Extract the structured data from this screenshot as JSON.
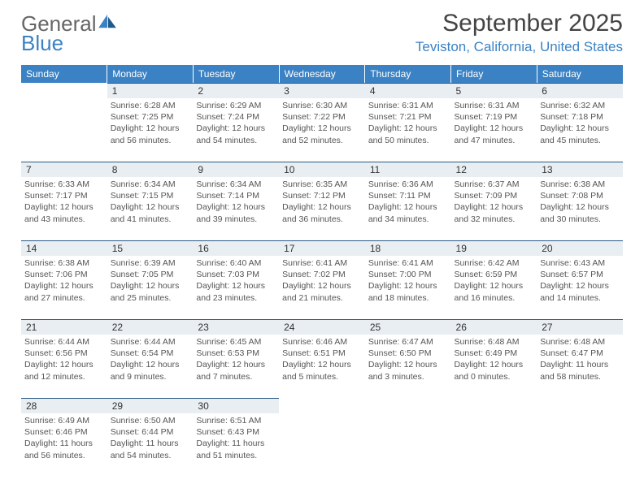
{
  "logo": {
    "general": "General",
    "blue": "Blue"
  },
  "title": "September 2025",
  "location": "Teviston, California, United States",
  "colors": {
    "brand": "#3b82c4",
    "text": "#444444",
    "daybg": "#e9eef2",
    "dayborder": "#2a5a85"
  },
  "weekdays": [
    "Sunday",
    "Monday",
    "Tuesday",
    "Wednesday",
    "Thursday",
    "Friday",
    "Saturday"
  ],
  "weeks": [
    [
      {
        "day": "",
        "lines": []
      },
      {
        "day": "1",
        "lines": [
          "Sunrise: 6:28 AM",
          "Sunset: 7:25 PM",
          "Daylight: 12 hours and 56 minutes."
        ]
      },
      {
        "day": "2",
        "lines": [
          "Sunrise: 6:29 AM",
          "Sunset: 7:24 PM",
          "Daylight: 12 hours and 54 minutes."
        ]
      },
      {
        "day": "3",
        "lines": [
          "Sunrise: 6:30 AM",
          "Sunset: 7:22 PM",
          "Daylight: 12 hours and 52 minutes."
        ]
      },
      {
        "day": "4",
        "lines": [
          "Sunrise: 6:31 AM",
          "Sunset: 7:21 PM",
          "Daylight: 12 hours and 50 minutes."
        ]
      },
      {
        "day": "5",
        "lines": [
          "Sunrise: 6:31 AM",
          "Sunset: 7:19 PM",
          "Daylight: 12 hours and 47 minutes."
        ]
      },
      {
        "day": "6",
        "lines": [
          "Sunrise: 6:32 AM",
          "Sunset: 7:18 PM",
          "Daylight: 12 hours and 45 minutes."
        ]
      }
    ],
    [
      {
        "day": "7",
        "lines": [
          "Sunrise: 6:33 AM",
          "Sunset: 7:17 PM",
          "Daylight: 12 hours and 43 minutes."
        ]
      },
      {
        "day": "8",
        "lines": [
          "Sunrise: 6:34 AM",
          "Sunset: 7:15 PM",
          "Daylight: 12 hours and 41 minutes."
        ]
      },
      {
        "day": "9",
        "lines": [
          "Sunrise: 6:34 AM",
          "Sunset: 7:14 PM",
          "Daylight: 12 hours and 39 minutes."
        ]
      },
      {
        "day": "10",
        "lines": [
          "Sunrise: 6:35 AM",
          "Sunset: 7:12 PM",
          "Daylight: 12 hours and 36 minutes."
        ]
      },
      {
        "day": "11",
        "lines": [
          "Sunrise: 6:36 AM",
          "Sunset: 7:11 PM",
          "Daylight: 12 hours and 34 minutes."
        ]
      },
      {
        "day": "12",
        "lines": [
          "Sunrise: 6:37 AM",
          "Sunset: 7:09 PM",
          "Daylight: 12 hours and 32 minutes."
        ]
      },
      {
        "day": "13",
        "lines": [
          "Sunrise: 6:38 AM",
          "Sunset: 7:08 PM",
          "Daylight: 12 hours and 30 minutes."
        ]
      }
    ],
    [
      {
        "day": "14",
        "lines": [
          "Sunrise: 6:38 AM",
          "Sunset: 7:06 PM",
          "Daylight: 12 hours and 27 minutes."
        ]
      },
      {
        "day": "15",
        "lines": [
          "Sunrise: 6:39 AM",
          "Sunset: 7:05 PM",
          "Daylight: 12 hours and 25 minutes."
        ]
      },
      {
        "day": "16",
        "lines": [
          "Sunrise: 6:40 AM",
          "Sunset: 7:03 PM",
          "Daylight: 12 hours and 23 minutes."
        ]
      },
      {
        "day": "17",
        "lines": [
          "Sunrise: 6:41 AM",
          "Sunset: 7:02 PM",
          "Daylight: 12 hours and 21 minutes."
        ]
      },
      {
        "day": "18",
        "lines": [
          "Sunrise: 6:41 AM",
          "Sunset: 7:00 PM",
          "Daylight: 12 hours and 18 minutes."
        ]
      },
      {
        "day": "19",
        "lines": [
          "Sunrise: 6:42 AM",
          "Sunset: 6:59 PM",
          "Daylight: 12 hours and 16 minutes."
        ]
      },
      {
        "day": "20",
        "lines": [
          "Sunrise: 6:43 AM",
          "Sunset: 6:57 PM",
          "Daylight: 12 hours and 14 minutes."
        ]
      }
    ],
    [
      {
        "day": "21",
        "lines": [
          "Sunrise: 6:44 AM",
          "Sunset: 6:56 PM",
          "Daylight: 12 hours and 12 minutes."
        ]
      },
      {
        "day": "22",
        "lines": [
          "Sunrise: 6:44 AM",
          "Sunset: 6:54 PM",
          "Daylight: 12 hours and 9 minutes."
        ]
      },
      {
        "day": "23",
        "lines": [
          "Sunrise: 6:45 AM",
          "Sunset: 6:53 PM",
          "Daylight: 12 hours and 7 minutes."
        ]
      },
      {
        "day": "24",
        "lines": [
          "Sunrise: 6:46 AM",
          "Sunset: 6:51 PM",
          "Daylight: 12 hours and 5 minutes."
        ]
      },
      {
        "day": "25",
        "lines": [
          "Sunrise: 6:47 AM",
          "Sunset: 6:50 PM",
          "Daylight: 12 hours and 3 minutes."
        ]
      },
      {
        "day": "26",
        "lines": [
          "Sunrise: 6:48 AM",
          "Sunset: 6:49 PM",
          "Daylight: 12 hours and 0 minutes."
        ]
      },
      {
        "day": "27",
        "lines": [
          "Sunrise: 6:48 AM",
          "Sunset: 6:47 PM",
          "Daylight: 11 hours and 58 minutes."
        ]
      }
    ],
    [
      {
        "day": "28",
        "lines": [
          "Sunrise: 6:49 AM",
          "Sunset: 6:46 PM",
          "Daylight: 11 hours and 56 minutes."
        ]
      },
      {
        "day": "29",
        "lines": [
          "Sunrise: 6:50 AM",
          "Sunset: 6:44 PM",
          "Daylight: 11 hours and 54 minutes."
        ]
      },
      {
        "day": "30",
        "lines": [
          "Sunrise: 6:51 AM",
          "Sunset: 6:43 PM",
          "Daylight: 11 hours and 51 minutes."
        ]
      },
      {
        "day": "",
        "lines": []
      },
      {
        "day": "",
        "lines": []
      },
      {
        "day": "",
        "lines": []
      },
      {
        "day": "",
        "lines": []
      }
    ]
  ]
}
